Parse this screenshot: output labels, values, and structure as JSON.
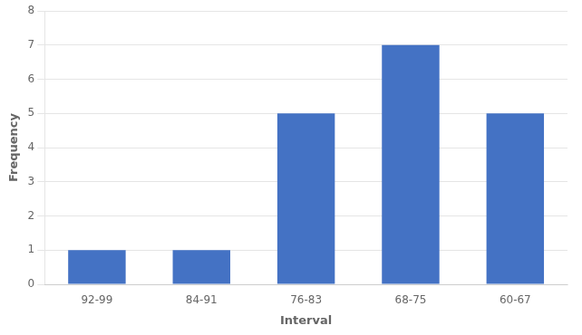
{
  "chart_data": {
    "type": "bar",
    "categories": [
      "92-99",
      "84-91",
      "76-83",
      "68-75",
      "60-67"
    ],
    "values": [
      1,
      1,
      5,
      7,
      5
    ],
    "color": "#4472C4",
    "xlabel": "Interval",
    "ylabel": "Frequency",
    "ylim": [
      0,
      8
    ],
    "yticks": [
      0,
      1,
      2,
      3,
      4,
      5,
      6,
      7,
      8
    ],
    "grid": true
  }
}
